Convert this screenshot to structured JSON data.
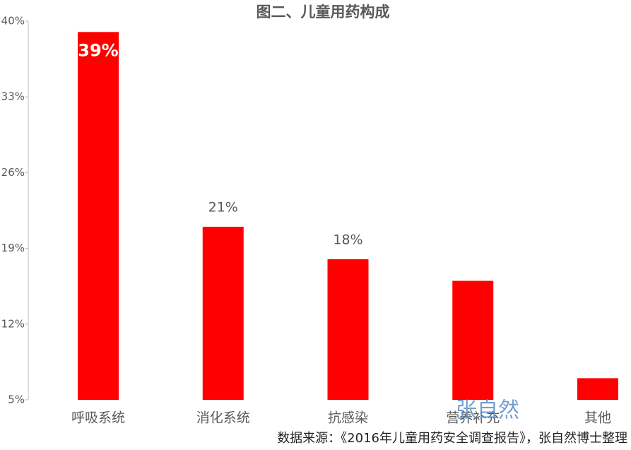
{
  "chart_data": {
    "type": "bar",
    "title": "图二、儿童用药构成",
    "categories": [
      "呼吸系统",
      "消化系统",
      "抗感染",
      "营养补充",
      "其他"
    ],
    "values": [
      39,
      21,
      18,
      16,
      7
    ],
    "value_labels": [
      "39%",
      "21%",
      "18%",
      null,
      null
    ],
    "color": "#ff0000",
    "ylim": [
      5,
      40
    ],
    "yticks": [
      {
        "value": 5,
        "label": "5%"
      },
      {
        "value": 12,
        "label": "12%"
      },
      {
        "value": 19,
        "label": "19%"
      },
      {
        "value": 26,
        "label": "26%"
      },
      {
        "value": 33,
        "label": "33%"
      },
      {
        "value": 40,
        "label": "40%"
      }
    ],
    "grid": false,
    "watermark": "张自然",
    "source": "数据来源：《2016年儿童用药安全调查报告》，张自然博士整理"
  }
}
